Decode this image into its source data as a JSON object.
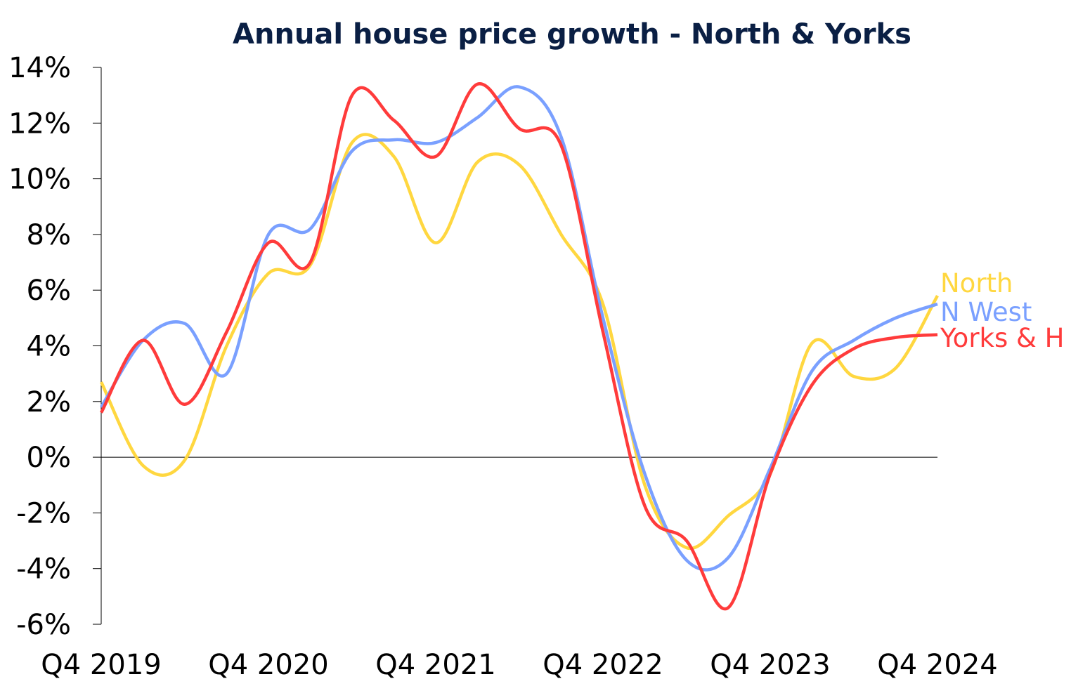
{
  "chart_data": {
    "type": "line",
    "title": "Annual house price growth - North & Yorks",
    "xlabel": "",
    "ylabel": "",
    "ylim": [
      -6,
      14
    ],
    "yticks": [
      "-6%",
      "-4%",
      "-2%",
      "0%",
      "2%",
      "4%",
      "6%",
      "8%",
      "10%",
      "12%",
      "14%"
    ],
    "ytick_values": [
      -6,
      -4,
      -2,
      0,
      2,
      4,
      6,
      8,
      10,
      12,
      14
    ],
    "xticks": [
      "Q4 2019",
      "Q4 2020",
      "Q4 2021",
      "Q4 2022",
      "Q4 2023",
      "Q4 2024"
    ],
    "xtick_index": [
      0,
      4,
      8,
      12,
      16,
      20
    ],
    "x": [
      "Q4 2019",
      "Q1 2020",
      "Q2 2020",
      "Q3 2020",
      "Q4 2020",
      "Q1 2021",
      "Q2 2021",
      "Q3 2021",
      "Q4 2021",
      "Q1 2022",
      "Q2 2022",
      "Q3 2022",
      "Q4 2022",
      "Q1 2023",
      "Q2 2023",
      "Q3 2023",
      "Q4 2023",
      "Q1 2024",
      "Q2 2024",
      "Q3 2024",
      "Q4 2024"
    ],
    "legend_placement": "line-end labels, right",
    "series": [
      {
        "name": "North",
        "color": "#ffd740",
        "values": [
          2.7,
          -0.3,
          -0.1,
          4.0,
          6.6,
          6.9,
          11.3,
          10.8,
          7.7,
          10.6,
          10.5,
          8.0,
          5.5,
          -1.0,
          -3.25,
          -2.1,
          -0.6,
          4.1,
          2.9,
          3.2,
          5.8
        ]
      },
      {
        "name": "N West",
        "color": "#7aa0ff",
        "values": [
          1.8,
          4.2,
          4.8,
          3.0,
          8.0,
          8.2,
          11.0,
          11.4,
          11.3,
          12.2,
          13.3,
          11.5,
          5.0,
          -0.6,
          -3.7,
          -3.6,
          -0.4,
          3.1,
          4.2,
          5.0,
          5.5
        ]
      },
      {
        "name": "Yorks & H",
        "color": "#ff3b3b",
        "values": [
          1.6,
          4.2,
          1.9,
          4.5,
          7.7,
          7.0,
          13.0,
          12.1,
          10.8,
          13.4,
          11.8,
          11.2,
          4.5,
          -1.75,
          -3.0,
          -5.4,
          -0.6,
          2.6,
          3.9,
          4.3,
          4.4
        ]
      }
    ]
  }
}
